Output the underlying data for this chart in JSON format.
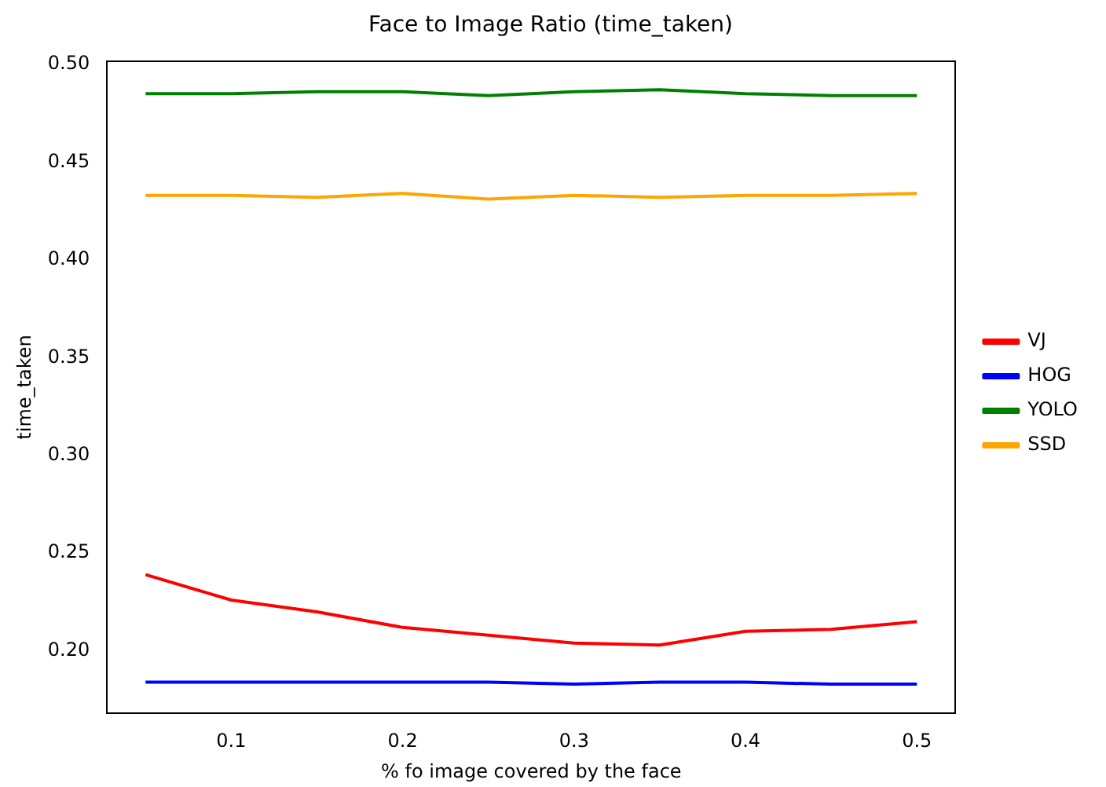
{
  "chart_data": {
    "type": "line",
    "title": "Face to Image Ratio (time_taken)",
    "xlabel": "% fo image covered by the face",
    "ylabel": "time_taken",
    "x": [
      0.05,
      0.1,
      0.15,
      0.2,
      0.25,
      0.3,
      0.35,
      0.4,
      0.45,
      0.5
    ],
    "series": [
      {
        "name": "VJ",
        "color": "#ff0000",
        "values": [
          0.239,
          0.226,
          0.22,
          0.212,
          0.208,
          0.204,
          0.203,
          0.21,
          0.211,
          0.215
        ]
      },
      {
        "name": "HOG",
        "color": "#0000ff",
        "values": [
          0.184,
          0.184,
          0.184,
          0.184,
          0.184,
          0.183,
          0.184,
          0.184,
          0.183,
          0.183
        ]
      },
      {
        "name": "YOLO",
        "color": "#008000",
        "values": [
          0.485,
          0.485,
          0.486,
          0.486,
          0.484,
          0.486,
          0.487,
          0.485,
          0.484,
          0.484
        ]
      },
      {
        "name": "SSD",
        "color": "#ffa500",
        "values": [
          0.433,
          0.433,
          0.432,
          0.434,
          0.431,
          0.433,
          0.432,
          0.433,
          0.433,
          0.434
        ]
      }
    ],
    "xlim": [
      0.0275,
      0.5225
    ],
    "xticks": [
      0.1,
      0.2,
      0.3,
      0.4,
      0.5
    ],
    "ylim": [
      0.168,
      0.5017
    ],
    "yticks": [
      {
        "value": 0.2,
        "label": "0.20"
      },
      0.25,
      {
        "value": 0.3,
        "label": "0.30"
      },
      0.35,
      {
        "value": 0.4,
        "label": "0.40"
      },
      0.45,
      {
        "value": 0.5,
        "label": "0.50"
      }
    ],
    "legend": "right",
    "grid": false,
    "marker": "none",
    "line_style": "solid"
  }
}
